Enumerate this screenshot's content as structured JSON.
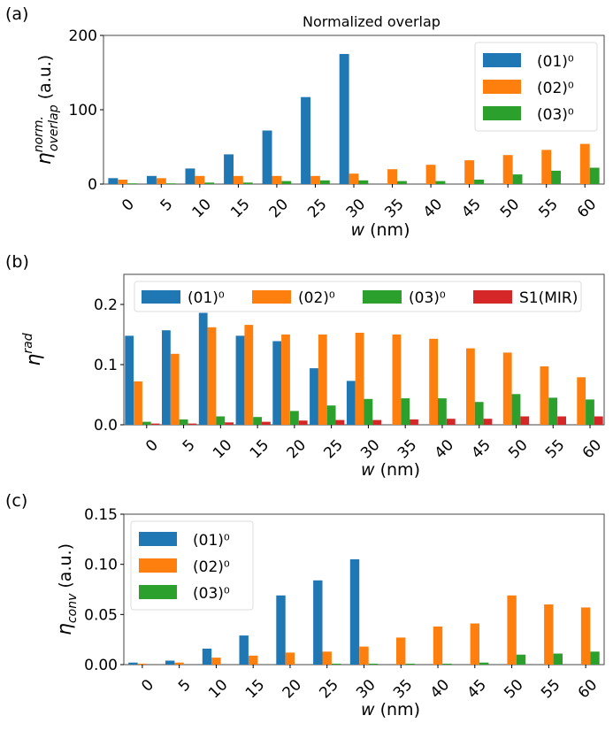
{
  "chart_data": [
    {
      "type": "bar",
      "panel_label": "(a)",
      "title": "Normalized overlap",
      "xlabel_var": "w",
      "xlabel_unit": " (nm)",
      "ylabel": "η",
      "ylabel_sup": "norm.",
      "ylabel_sub": "overlap",
      "ylabel_unit": " (a.u.)",
      "categories": [
        "0",
        "5",
        "10",
        "15",
        "20",
        "25",
        "30",
        "35",
        "40",
        "45",
        "50",
        "55",
        "60"
      ],
      "ylim": [
        0,
        200
      ],
      "yticks": [
        "0",
        "100",
        "200"
      ],
      "ytick_values": [
        0,
        100,
        200
      ],
      "legend_position": "upper-right",
      "legend_layout": "column",
      "series": [
        {
          "name": "(01)⁰",
          "color": "#1f77b4",
          "values": [
            8,
            11,
            21,
            40,
            72,
            117,
            175,
            0,
            0,
            0,
            0,
            0,
            0
          ]
        },
        {
          "name": "(02)⁰",
          "color": "#ff7f0e",
          "values": [
            6,
            8,
            11,
            11,
            11,
            11,
            14,
            20,
            26,
            32,
            39,
            46,
            54
          ]
        },
        {
          "name": "(03)⁰",
          "color": "#2ca02c",
          "values": [
            1,
            1,
            2,
            2,
            4,
            5,
            5,
            4,
            4,
            6,
            13,
            18,
            22
          ]
        }
      ]
    },
    {
      "type": "bar",
      "panel_label": "(b)",
      "title": "",
      "xlabel_var": "w",
      "xlabel_unit": " (nm)",
      "ylabel": "η",
      "ylabel_sup": "rad",
      "ylabel_sub": "",
      "ylabel_unit": "",
      "categories": [
        "0",
        "5",
        "10",
        "15",
        "20",
        "25",
        "30",
        "35",
        "40",
        "45",
        "50",
        "55",
        "60"
      ],
      "ylim": [
        0,
        0.25
      ],
      "yticks": [
        "0.0",
        "0.1",
        "0.2"
      ],
      "ytick_values": [
        0,
        0.1,
        0.2
      ],
      "legend_position": "upper-center",
      "legend_layout": "row",
      "series": [
        {
          "name": "(01)⁰",
          "color": "#1f77b4",
          "values": [
            0.148,
            0.157,
            0.186,
            0.148,
            0.139,
            0.094,
            0.073,
            0,
            0,
            0,
            0,
            0,
            0
          ]
        },
        {
          "name": "(02)⁰",
          "color": "#ff7f0e",
          "values": [
            0.072,
            0.118,
            0.162,
            0.166,
            0.15,
            0.15,
            0.153,
            0.15,
            0.143,
            0.127,
            0.12,
            0.097,
            0.079
          ]
        },
        {
          "name": "(03)⁰",
          "color": "#2ca02c",
          "values": [
            0.005,
            0.009,
            0.014,
            0.013,
            0.023,
            0.032,
            0.043,
            0.044,
            0.044,
            0.038,
            0.051,
            0.045,
            0.042
          ]
        },
        {
          "name": "S1(MIR)",
          "color": "#d62728",
          "values": [
            0.002,
            0.002,
            0.004,
            0.005,
            0.007,
            0.008,
            0.008,
            0.009,
            0.01,
            0.01,
            0.014,
            0.014,
            0.014
          ]
        }
      ]
    },
    {
      "type": "bar",
      "panel_label": "(c)",
      "title": "",
      "xlabel_var": "w",
      "xlabel_unit": " (nm)",
      "ylabel": "η",
      "ylabel_sup": "",
      "ylabel_sub": "conv",
      "ylabel_unit": " (a.u.)",
      "categories": [
        "0",
        "5",
        "10",
        "15",
        "20",
        "25",
        "30",
        "35",
        "40",
        "45",
        "50",
        "55",
        "60"
      ],
      "ylim": [
        0,
        0.15
      ],
      "yticks": [
        "0.00",
        "0.05",
        "0.10",
        "0.15"
      ],
      "ytick_values": [
        0,
        0.05,
        0.1,
        0.15
      ],
      "legend_position": "upper-left",
      "legend_layout": "column",
      "series": [
        {
          "name": "(01)⁰",
          "color": "#1f77b4",
          "values": [
            0.002,
            0.004,
            0.016,
            0.029,
            0.069,
            0.084,
            0.105,
            0,
            0,
            0,
            0,
            0,
            0
          ]
        },
        {
          "name": "(02)⁰",
          "color": "#ff7f0e",
          "values": [
            0.001,
            0.002,
            0.007,
            0.009,
            0.012,
            0.013,
            0.018,
            0.027,
            0.038,
            0.041,
            0.069,
            0.06,
            0.057
          ]
        },
        {
          "name": "(03)⁰",
          "color": "#2ca02c",
          "values": [
            0,
            0,
            0,
            0,
            0,
            0.001,
            0.001,
            0.001,
            0.001,
            0.002,
            0.01,
            0.011,
            0.013
          ]
        }
      ]
    }
  ]
}
